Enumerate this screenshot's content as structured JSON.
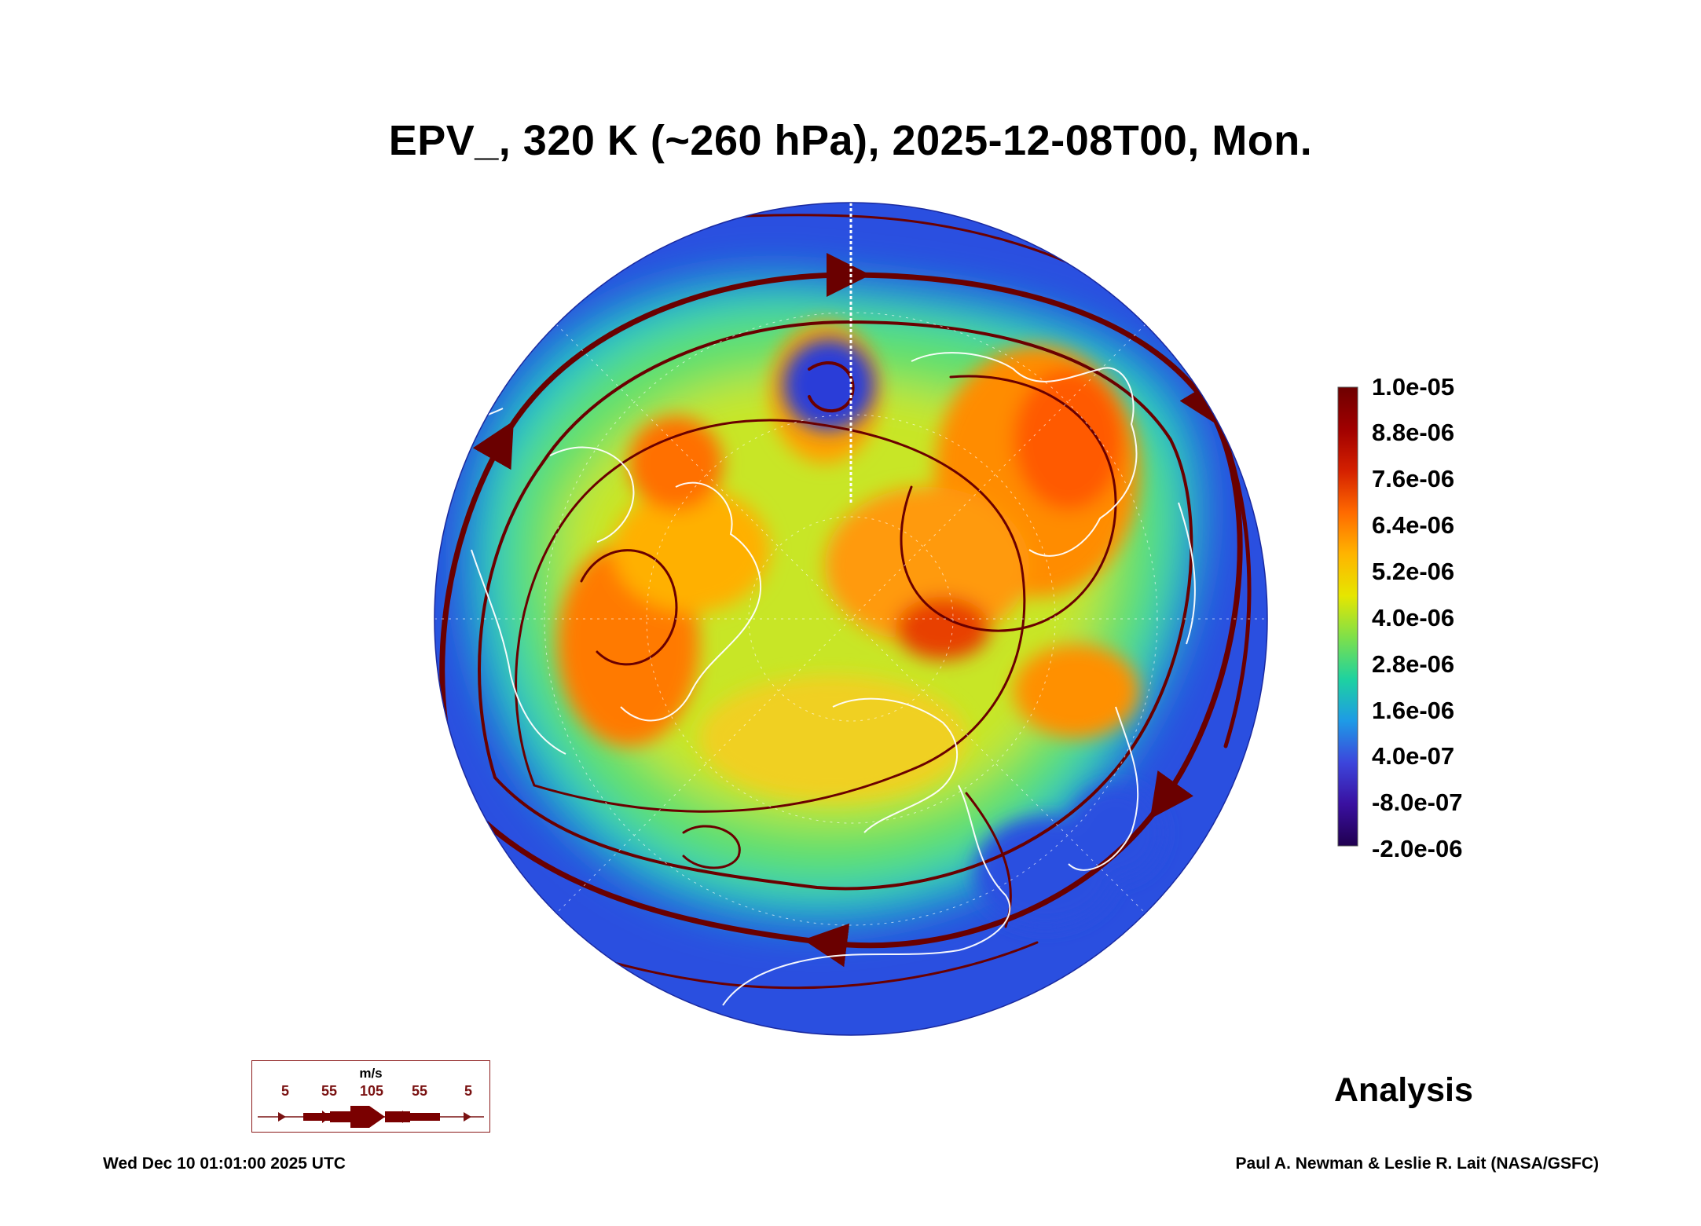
{
  "title": "EPV_, 320 K (~260 hPa), 2025-12-08T00, Mon.",
  "colorbar": {
    "labels": [
      "1.0e-05",
      "8.8e-06",
      "7.6e-06",
      "6.4e-06",
      "5.2e-06",
      "4.0e-06",
      "2.8e-06",
      "1.6e-06",
      "4.0e-07",
      "-8.0e-07",
      "-2.0e-06"
    ],
    "colors": [
      "#6e0000",
      "#a00000",
      "#d42000",
      "#ff6a00",
      "#ffb400",
      "#e6e600",
      "#7ee04a",
      "#1ed2a0",
      "#1e9be6",
      "#3c46dc",
      "#3a10a0",
      "#200050"
    ]
  },
  "analysis_label": "Analysis",
  "legend": {
    "unit": "m/s",
    "values": [
      "5",
      "55",
      "105",
      "55",
      "5"
    ]
  },
  "footer": {
    "timestamp": "Wed Dec 10 01:01:00 2025 UTC",
    "credit": "Paul A. Newman & Leslie R. Lait (NASA/GSFC)"
  }
}
